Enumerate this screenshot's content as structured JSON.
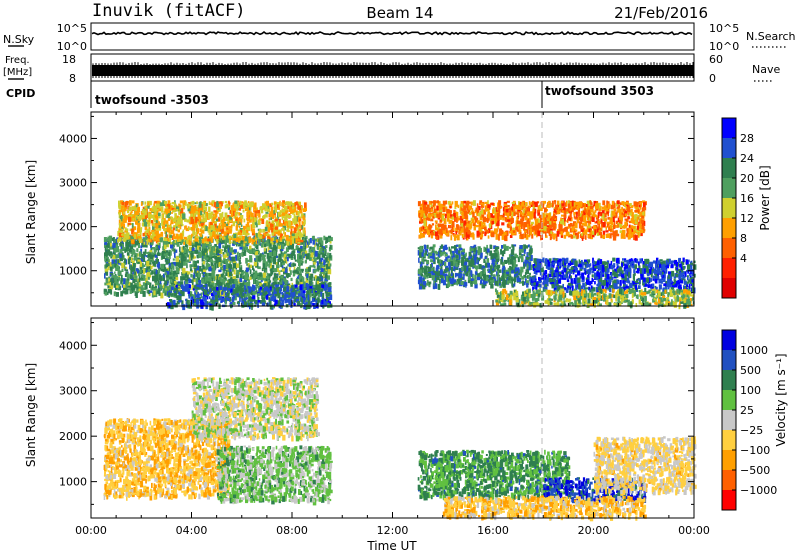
{
  "header": {
    "station": "Inuvik (fitACF)",
    "beam": "Beam 14",
    "date": "21/Feb/2016"
  },
  "status_panels": {
    "nsky_label": "N.Sky",
    "nsky_ticks": [
      "10^5",
      "10^0"
    ],
    "nsearch_label": "N.Search",
    "nsearch_ticks": [
      "10^5",
      "10^0"
    ],
    "freq_label": "Freq.",
    "freq_unit": "[MHz]",
    "freq_ticks": [
      "18",
      "8"
    ],
    "nave_label": "Nave",
    "nave_ticks": [
      "60",
      "0"
    ],
    "cpid_label": "CPID",
    "cpid_entries": [
      {
        "name": "twofsound -3503",
        "start": "00:00"
      },
      {
        "name": "twofsound 3503",
        "start": "18:00"
      }
    ],
    "nsky_level": 0.62,
    "freq_level": 0.35
  },
  "colors": {
    "power_scale": [
      "#0000ff",
      "#2050d0",
      "#2f7f4f",
      "#4f9f5f",
      "#cfd02f",
      "#ff9f00",
      "#ff6000",
      "#ff2000",
      "#e00000"
    ],
    "velocity_scale": [
      "#0000e0",
      "#2050c0",
      "#2f7f4f",
      "#60c040",
      "#c8c8c8",
      "#ffcf40",
      "#ff9f00",
      "#ff6000",
      "#ff0000"
    ]
  },
  "chart_data": [
    {
      "type": "heatmap",
      "title": "",
      "xlabel": "",
      "ylabel": "Slant Range [km]",
      "x_ticks": [
        "00:00",
        "04:00",
        "08:00",
        "12:00",
        "16:00",
        "20:00",
        "00:00"
      ],
      "xlim_hours": [
        0,
        24
      ],
      "y_ticks": [
        "1000",
        "2000",
        "3000",
        "4000"
      ],
      "ylim_km": [
        200,
        4600
      ],
      "colorbar": {
        "label": "Power [dB]",
        "ticks": [
          "28",
          "24",
          "20",
          "16",
          "12",
          "8",
          "4"
        ],
        "range": [
          0,
          32
        ]
      },
      "scatter_regions": [
        {
          "x": [
            0.5,
            9.5
          ],
          "y": [
            500,
            1800
          ],
          "value_db": "22"
        },
        {
          "x": [
            1.0,
            8.5
          ],
          "y": [
            1700,
            2600
          ],
          "value_db": "14"
        },
        {
          "x": [
            3.0,
            9.5
          ],
          "y": [
            200,
            700
          ],
          "value_db": "26"
        },
        {
          "x": [
            13.0,
            17.5
          ],
          "y": [
            700,
            1600
          ],
          "value_db": "24"
        },
        {
          "x": [
            17.5,
            24.0
          ],
          "y": [
            600,
            1300
          ],
          "value_db": "28"
        },
        {
          "x": [
            13.0,
            22.0
          ],
          "y": [
            1800,
            2600
          ],
          "value_db": "10"
        },
        {
          "x": [
            16.0,
            24.0
          ],
          "y": [
            250,
            600
          ],
          "value_db": "18"
        }
      ]
    },
    {
      "type": "heatmap",
      "title": "",
      "xlabel": "Time UT",
      "ylabel": "Slant Range [km]",
      "x_ticks": [
        "00:00",
        "04:00",
        "08:00",
        "12:00",
        "16:00",
        "20:00",
        "00:00"
      ],
      "xlim_hours": [
        0,
        24
      ],
      "y_ticks": [
        "1000",
        "2000",
        "3000",
        "4000"
      ],
      "ylim_km": [
        200,
        4600
      ],
      "colorbar": {
        "label": "Velocity [m s⁻¹]",
        "ticks": [
          "1000",
          "500",
          "100",
          "25",
          "−25",
          "−100",
          "−500",
          "−1000"
        ],
        "range": [
          -1000,
          1000
        ]
      },
      "scatter_regions": [
        {
          "x": [
            0.5,
            5.5
          ],
          "y": [
            700,
            2400
          ],
          "velocity": "-300"
        },
        {
          "x": [
            5.0,
            9.5
          ],
          "y": [
            600,
            1800
          ],
          "velocity": "200"
        },
        {
          "x": [
            4.0,
            9.0
          ],
          "y": [
            2000,
            3300
          ],
          "velocity": "0"
        },
        {
          "x": [
            13.0,
            19.0
          ],
          "y": [
            700,
            1700
          ],
          "velocity": "400"
        },
        {
          "x": [
            18.0,
            22.0
          ],
          "y": [
            600,
            1100
          ],
          "velocity": "800"
        },
        {
          "x": [
            14.0,
            22.0
          ],
          "y": [
            250,
            700
          ],
          "velocity": "-300"
        },
        {
          "x": [
            20.0,
            24.0
          ],
          "y": [
            800,
            2000
          ],
          "velocity": "-150"
        }
      ]
    }
  ]
}
